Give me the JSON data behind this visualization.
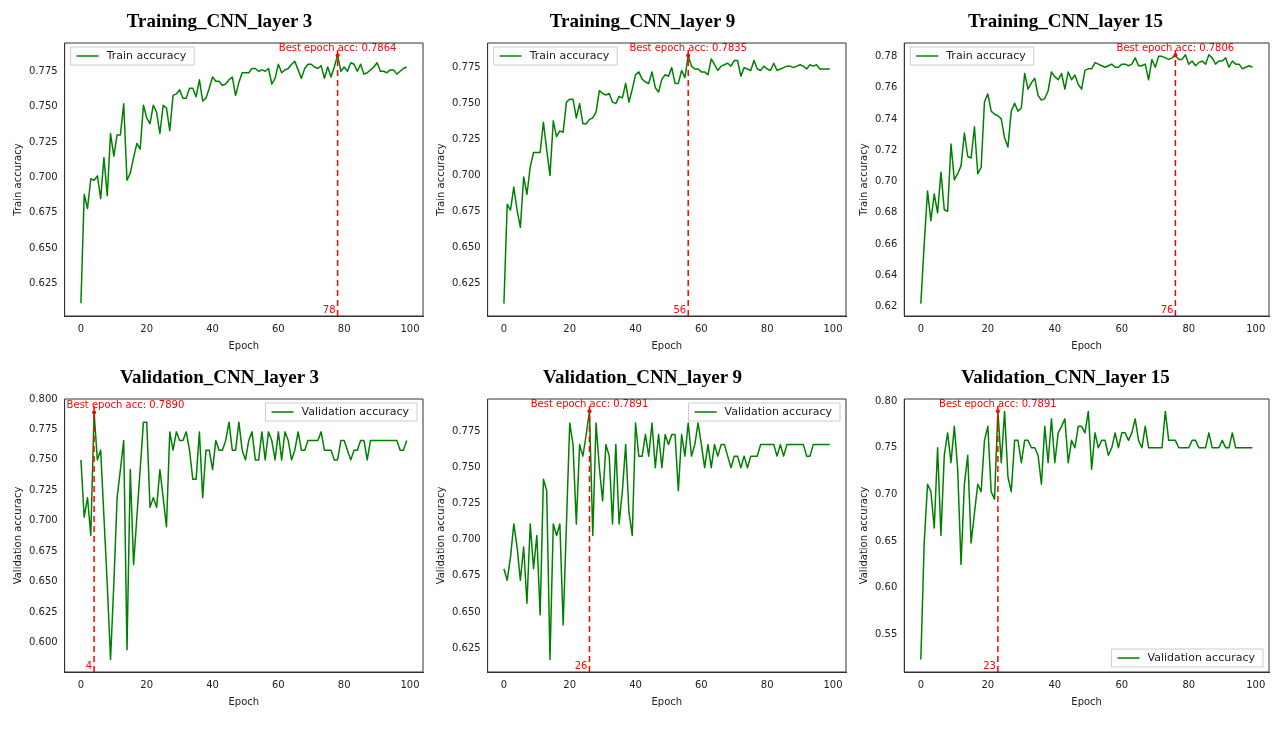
{
  "chart_data": [
    {
      "type": "line",
      "title": "Training_CNN_layer 3",
      "xlabel": "Epoch",
      "ylabel": "Train accuracy",
      "legend": "top left",
      "x": [
        0,
        1,
        2,
        3,
        4,
        5,
        6,
        7,
        8,
        9,
        10,
        11,
        12,
        13,
        14,
        15,
        16,
        17,
        18,
        19,
        20,
        21,
        22,
        23,
        24,
        25,
        26,
        27,
        28,
        29,
        30,
        31,
        32,
        33,
        34,
        35,
        36,
        37,
        38,
        39,
        40,
        41,
        42,
        43,
        44,
        45,
        46,
        47,
        48,
        49,
        50,
        51,
        52,
        53,
        54,
        55,
        56,
        57,
        58,
        59,
        60,
        61,
        62,
        63,
        64,
        65,
        66,
        67,
        68,
        69,
        70,
        71,
        72,
        73,
        74,
        75,
        76,
        77,
        78,
        79,
        80,
        81,
        82,
        83,
        84,
        85,
        86,
        87,
        88,
        89,
        90,
        91,
        92,
        93,
        94,
        95,
        96,
        97,
        98,
        99
      ],
      "series": [
        {
          "name": "Train accuracy",
          "color": "#008000",
          "values": [
            0.611,
            0.688,
            0.678,
            0.699,
            0.698,
            0.701,
            0.685,
            0.714,
            0.687,
            0.731,
            0.715,
            0.73,
            0.73,
            0.752,
            0.698,
            0.703,
            0.714,
            0.724,
            0.72,
            0.751,
            0.742,
            0.738,
            0.751,
            0.746,
            0.731,
            0.751,
            0.749,
            0.733,
            0.758,
            0.759,
            0.762,
            0.756,
            0.756,
            0.763,
            0.763,
            0.757,
            0.769,
            0.754,
            0.756,
            0.763,
            0.771,
            0.768,
            0.768,
            0.765,
            0.766,
            0.769,
            0.771,
            0.758,
            0.767,
            0.774,
            0.774,
            0.774,
            0.777,
            0.777,
            0.775,
            0.776,
            0.775,
            0.777,
            0.766,
            0.77,
            0.78,
            0.774,
            0.776,
            0.777,
            0.78,
            0.782,
            0.776,
            0.77,
            0.777,
            0.78,
            0.78,
            0.778,
            0.777,
            0.779,
            0.77,
            0.778,
            0.771,
            0.778,
            0.7864,
            0.775,
            0.778,
            0.775,
            0.781,
            0.78,
            0.775,
            0.78,
            0.773,
            0.774,
            0.776,
            0.778,
            0.781,
            0.775,
            0.775,
            0.774,
            0.776,
            0.776,
            0.773,
            0.775,
            0.777,
            0.778
          ]
        }
      ],
      "xlim": [
        -4.95,
        103.95
      ],
      "xticks": [
        0,
        20,
        40,
        60,
        80,
        100
      ],
      "ylim": [
        0.602,
        0.795
      ],
      "yticks": [
        {
          "value": 0.625,
          "label": "0.625"
        },
        {
          "value": 0.65,
          "label": "0.650"
        },
        {
          "value": 0.675,
          "label": "0.675"
        },
        {
          "value": 0.7,
          "label": "0.700"
        },
        {
          "value": 0.725,
          "label": "0.725"
        },
        {
          "value": 0.75,
          "label": "0.750"
        },
        {
          "value": 0.775,
          "label": "0.775"
        }
      ],
      "ref_lines": [
        {
          "axis": "x",
          "value": 78,
          "label": "78",
          "color": "#ff0000",
          "line_style": "dashed"
        }
      ],
      "annotations": [
        {
          "text": "Best epoch acc: 0.7864",
          "x": 78,
          "y": 0.7864
        }
      ]
    },
    {
      "type": "line",
      "title": "Training_CNN_layer 9",
      "xlabel": "Epoch",
      "ylabel": "Train accuracy",
      "legend": "top left",
      "x": [
        0,
        1,
        2,
        3,
        4,
        5,
        6,
        7,
        8,
        9,
        10,
        11,
        12,
        13,
        14,
        15,
        16,
        17,
        18,
        19,
        20,
        21,
        22,
        23,
        24,
        25,
        26,
        27,
        28,
        29,
        30,
        31,
        32,
        33,
        34,
        35,
        36,
        37,
        38,
        39,
        40,
        41,
        42,
        43,
        44,
        45,
        46,
        47,
        48,
        49,
        50,
        51,
        52,
        53,
        54,
        55,
        56,
        57,
        58,
        59,
        60,
        61,
        62,
        63,
        64,
        65,
        66,
        67,
        68,
        69,
        70,
        71,
        72,
        73,
        74,
        75,
        76,
        77,
        78,
        79,
        80,
        81,
        82,
        83,
        84,
        85,
        86,
        87,
        88,
        89,
        90,
        91,
        92,
        93,
        94,
        95,
        96,
        97,
        98,
        99
      ],
      "series": [
        {
          "name": "Train accuracy",
          "color": "#008000",
          "values": [
            0.611,
            0.68,
            0.676,
            0.692,
            0.676,
            0.664,
            0.699,
            0.687,
            0.706,
            0.716,
            0.716,
            0.716,
            0.737,
            0.718,
            0.7,
            0.738,
            0.727,
            0.731,
            0.73,
            0.751,
            0.753,
            0.753,
            0.74,
            0.75,
            0.736,
            0.736,
            0.739,
            0.74,
            0.744,
            0.759,
            0.757,
            0.756,
            0.757,
            0.751,
            0.75,
            0.755,
            0.754,
            0.764,
            0.751,
            0.76,
            0.77,
            0.772,
            0.767,
            0.765,
            0.764,
            0.772,
            0.761,
            0.758,
            0.767,
            0.77,
            0.769,
            0.775,
            0.764,
            0.764,
            0.773,
            0.768,
            0.7835,
            0.776,
            0.774,
            0.774,
            0.772,
            0.772,
            0.77,
            0.781,
            0.777,
            0.773,
            0.776,
            0.777,
            0.778,
            0.776,
            0.78,
            0.78,
            0.769,
            0.775,
            0.774,
            0.773,
            0.78,
            0.774,
            0.773,
            0.776,
            0.774,
            0.773,
            0.778,
            0.773,
            0.774,
            0.775,
            0.776,
            0.776,
            0.775,
            0.776,
            0.777,
            0.776,
            0.774,
            0.777,
            0.776,
            0.777,
            0.774,
            0.774,
            0.774,
            0.774
          ]
        }
      ],
      "xlim": [
        -4.95,
        103.95
      ],
      "xticks": [
        0,
        20,
        40,
        60,
        80,
        100
      ],
      "ylim": [
        0.6024,
        0.7921
      ],
      "yticks": [
        {
          "value": 0.625,
          "label": "0.625"
        },
        {
          "value": 0.65,
          "label": "0.650"
        },
        {
          "value": 0.675,
          "label": "0.675"
        },
        {
          "value": 0.7,
          "label": "0.700"
        },
        {
          "value": 0.725,
          "label": "0.725"
        },
        {
          "value": 0.75,
          "label": "0.750"
        },
        {
          "value": 0.775,
          "label": "0.775"
        }
      ],
      "ref_lines": [
        {
          "axis": "x",
          "value": 56,
          "label": "56",
          "color": "#ff0000",
          "line_style": "dashed"
        }
      ],
      "annotations": [
        {
          "text": "Best epoch acc: 0.7835",
          "x": 56,
          "y": 0.7835
        }
      ]
    },
    {
      "type": "line",
      "title": "Training_CNN_layer 15",
      "xlabel": "Epoch",
      "ylabel": "Train accuracy",
      "legend": "top left",
      "x": [
        0,
        1,
        2,
        3,
        4,
        5,
        6,
        7,
        8,
        9,
        10,
        11,
        12,
        13,
        14,
        15,
        16,
        17,
        18,
        19,
        20,
        21,
        22,
        23,
        24,
        25,
        26,
        27,
        28,
        29,
        30,
        31,
        32,
        33,
        34,
        35,
        36,
        37,
        38,
        39,
        40,
        41,
        42,
        43,
        44,
        45,
        46,
        47,
        48,
        49,
        50,
        51,
        52,
        53,
        54,
        55,
        56,
        57,
        58,
        59,
        60,
        61,
        62,
        63,
        64,
        65,
        66,
        67,
        68,
        69,
        70,
        71,
        72,
        73,
        74,
        75,
        76,
        77,
        78,
        79,
        80,
        81,
        82,
        83,
        84,
        85,
        86,
        87,
        88,
        89,
        90,
        91,
        92,
        93,
        94,
        95,
        96,
        97,
        98,
        99
      ],
      "series": [
        {
          "name": "Train accuracy",
          "color": "#008000",
          "values": [
            0.622,
            0.66,
            0.694,
            0.675,
            0.692,
            0.68,
            0.706,
            0.682,
            0.681,
            0.724,
            0.701,
            0.705,
            0.71,
            0.731,
            0.716,
            0.715,
            0.735,
            0.705,
            0.709,
            0.751,
            0.756,
            0.745,
            0.743,
            0.742,
            0.74,
            0.728,
            0.722,
            0.745,
            0.75,
            0.745,
            0.747,
            0.769,
            0.759,
            0.763,
            0.766,
            0.755,
            0.752,
            0.753,
            0.758,
            0.77,
            0.767,
            0.765,
            0.769,
            0.759,
            0.77,
            0.765,
            0.768,
            0.762,
            0.759,
            0.771,
            0.772,
            0.772,
            0.776,
            0.775,
            0.774,
            0.773,
            0.774,
            0.775,
            0.773,
            0.773,
            0.775,
            0.775,
            0.774,
            0.775,
            0.779,
            0.774,
            0.774,
            0.775,
            0.765,
            0.778,
            0.773,
            0.78,
            0.78,
            0.779,
            0.778,
            0.779,
            0.7806,
            0.778,
            0.778,
            0.781,
            0.775,
            0.777,
            0.774,
            0.776,
            0.777,
            0.775,
            0.781,
            0.779,
            0.775,
            0.777,
            0.777,
            0.779,
            0.773,
            0.777,
            0.775,
            0.775,
            0.772,
            0.773,
            0.774,
            0.773
          ]
        }
      ],
      "xlim": [
        -4.95,
        103.95
      ],
      "xticks": [
        0,
        20,
        40,
        60,
        80,
        100
      ],
      "ylim": [
        0.6141,
        0.7885
      ],
      "yticks": [
        {
          "value": 0.62,
          "label": "0.62"
        },
        {
          "value": 0.64,
          "label": "0.64"
        },
        {
          "value": 0.66,
          "label": "0.66"
        },
        {
          "value": 0.68,
          "label": "0.68"
        },
        {
          "value": 0.7,
          "label": "0.70"
        },
        {
          "value": 0.72,
          "label": "0.72"
        },
        {
          "value": 0.74,
          "label": "0.74"
        },
        {
          "value": 0.76,
          "label": "0.76"
        },
        {
          "value": 0.78,
          "label": "0.78"
        }
      ],
      "ref_lines": [
        {
          "axis": "x",
          "value": 76,
          "label": "76",
          "color": "#ff0000",
          "line_style": "dashed"
        }
      ],
      "annotations": [
        {
          "text": "Best epoch acc: 0.7806",
          "x": 76,
          "y": 0.7806
        }
      ]
    },
    {
      "type": "line",
      "title": "Validation_CNN_layer 3",
      "xlabel": "Epoch",
      "ylabel": "Validation accuracy",
      "legend": "top right",
      "x": [
        0,
        1,
        2,
        3,
        4,
        5,
        6,
        7,
        8,
        9,
        10,
        11,
        12,
        13,
        14,
        15,
        16,
        17,
        18,
        19,
        20,
        21,
        22,
        23,
        24,
        25,
        26,
        27,
        28,
        29,
        30,
        31,
        32,
        33,
        34,
        35,
        36,
        37,
        38,
        39,
        40,
        41,
        42,
        43,
        44,
        45,
        46,
        47,
        48,
        49,
        50,
        51,
        52,
        53,
        54,
        55,
        56,
        57,
        58,
        59,
        60,
        61,
        62,
        63,
        64,
        65,
        66,
        67,
        68,
        69,
        70,
        71,
        72,
        73,
        74,
        75,
        76,
        77,
        78,
        79,
        80,
        81,
        82,
        83,
        84,
        85,
        86,
        87,
        88,
        89,
        90,
        91,
        92,
        93,
        94,
        95,
        96,
        97,
        98,
        99
      ],
      "series": [
        {
          "name": "Validation accuracy",
          "color": "#008000",
          "values": [
            0.75,
            0.703,
            0.719,
            0.688,
            0.789,
            0.75,
            0.758,
            0.703,
            0.648,
            0.586,
            0.648,
            0.719,
            0.742,
            0.766,
            0.594,
            0.742,
            0.664,
            0.703,
            0.742,
            0.781,
            0.781,
            0.711,
            0.719,
            0.711,
            0.742,
            0.719,
            0.695,
            0.773,
            0.758,
            0.773,
            0.766,
            0.766,
            0.773,
            0.758,
            0.734,
            0.734,
            0.773,
            0.719,
            0.758,
            0.758,
            0.742,
            0.766,
            0.758,
            0.758,
            0.766,
            0.781,
            0.758,
            0.758,
            0.781,
            0.758,
            0.75,
            0.766,
            0.773,
            0.75,
            0.75,
            0.773,
            0.75,
            0.773,
            0.766,
            0.75,
            0.773,
            0.75,
            0.773,
            0.766,
            0.75,
            0.758,
            0.773,
            0.758,
            0.758,
            0.766,
            0.766,
            0.766,
            0.766,
            0.773,
            0.758,
            0.758,
            0.758,
            0.75,
            0.75,
            0.766,
            0.766,
            0.758,
            0.75,
            0.758,
            0.758,
            0.766,
            0.766,
            0.75,
            0.766,
            0.766,
            0.766,
            0.766,
            0.766,
            0.766,
            0.766,
            0.766,
            0.766,
            0.758,
            0.758,
            0.766
          ]
        }
      ],
      "xlim": [
        -4.95,
        103.95
      ],
      "xticks": [
        0,
        20,
        40,
        60,
        80,
        100
      ],
      "ylim": [
        0.5758,
        0.8
      ],
      "yticks": [
        {
          "value": 0.6,
          "label": "0.600"
        },
        {
          "value": 0.625,
          "label": "0.625"
        },
        {
          "value": 0.65,
          "label": "0.650"
        },
        {
          "value": 0.675,
          "label": "0.675"
        },
        {
          "value": 0.7,
          "label": "0.700"
        },
        {
          "value": 0.725,
          "label": "0.725"
        },
        {
          "value": 0.75,
          "label": "0.750"
        },
        {
          "value": 0.775,
          "label": "0.775"
        },
        {
          "value": 0.8,
          "label": "0.800"
        }
      ],
      "ref_lines": [
        {
          "axis": "x",
          "value": 4,
          "label": "4",
          "color": "#ff0000",
          "line_style": "dashed"
        }
      ],
      "annotations": [
        {
          "text": "Best epoch acc: 0.7890",
          "x": 4,
          "y": 0.789
        }
      ]
    },
    {
      "type": "line",
      "title": "Validation_CNN_layer 9",
      "xlabel": "Epoch",
      "ylabel": "Validation accuracy",
      "legend": "top right",
      "x": [
        0,
        1,
        2,
        3,
        4,
        5,
        6,
        7,
        8,
        9,
        10,
        11,
        12,
        13,
        14,
        15,
        16,
        17,
        18,
        19,
        20,
        21,
        22,
        23,
        24,
        25,
        26,
        27,
        28,
        29,
        30,
        31,
        32,
        33,
        34,
        35,
        36,
        37,
        38,
        39,
        40,
        41,
        42,
        43,
        44,
        45,
        46,
        47,
        48,
        49,
        50,
        51,
        52,
        53,
        54,
        55,
        56,
        57,
        58,
        59,
        60,
        61,
        62,
        63,
        64,
        65,
        66,
        67,
        68,
        69,
        70,
        71,
        72,
        73,
        74,
        75,
        76,
        77,
        78,
        79,
        80,
        81,
        82,
        83,
        84,
        85,
        86,
        87,
        88,
        89,
        90,
        91,
        92,
        93,
        94,
        95,
        96,
        97,
        98,
        99
      ],
      "series": [
        {
          "name": "Validation accuracy",
          "color": "#008000",
          "values": [
            0.68,
            0.672,
            0.688,
            0.711,
            0.695,
            0.672,
            0.695,
            0.656,
            0.711,
            0.68,
            0.703,
            0.648,
            0.742,
            0.734,
            0.617,
            0.711,
            0.703,
            0.711,
            0.641,
            0.711,
            0.781,
            0.766,
            0.711,
            0.766,
            0.758,
            0.773,
            0.789,
            0.703,
            0.781,
            0.75,
            0.727,
            0.766,
            0.758,
            0.711,
            0.766,
            0.711,
            0.734,
            0.766,
            0.719,
            0.703,
            0.781,
            0.758,
            0.758,
            0.773,
            0.758,
            0.781,
            0.75,
            0.773,
            0.75,
            0.773,
            0.766,
            0.773,
            0.773,
            0.734,
            0.773,
            0.758,
            0.781,
            0.758,
            0.766,
            0.781,
            0.766,
            0.75,
            0.766,
            0.75,
            0.766,
            0.758,
            0.766,
            0.766,
            0.758,
            0.75,
            0.758,
            0.758,
            0.75,
            0.758,
            0.75,
            0.758,
            0.758,
            0.758,
            0.766,
            0.766,
            0.766,
            0.766,
            0.766,
            0.758,
            0.766,
            0.758,
            0.766,
            0.766,
            0.766,
            0.766,
            0.766,
            0.766,
            0.758,
            0.758,
            0.766,
            0.766,
            0.766,
            0.766,
            0.766,
            0.766
          ]
        }
      ],
      "xlim": [
        -4.95,
        103.95
      ],
      "xticks": [
        0,
        20,
        40,
        60,
        80,
        100
      ],
      "ylim": [
        0.6084,
        0.7976
      ],
      "yticks": [
        {
          "value": 0.625,
          "label": "0.625"
        },
        {
          "value": 0.65,
          "label": "0.650"
        },
        {
          "value": 0.675,
          "label": "0.675"
        },
        {
          "value": 0.7,
          "label": "0.700"
        },
        {
          "value": 0.725,
          "label": "0.725"
        },
        {
          "value": 0.75,
          "label": "0.750"
        },
        {
          "value": 0.775,
          "label": "0.775"
        }
      ],
      "ref_lines": [
        {
          "axis": "x",
          "value": 26,
          "label": "26",
          "color": "#ff0000",
          "line_style": "dashed"
        }
      ],
      "annotations": [
        {
          "text": "Best epoch acc: 0.7891",
          "x": 26,
          "y": 0.7891
        }
      ]
    },
    {
      "type": "line",
      "title": "Validation_CNN_layer 15",
      "xlabel": "Epoch",
      "ylabel": "Validation accuracy",
      "legend": "bottom right",
      "x": [
        0,
        1,
        2,
        3,
        4,
        5,
        6,
        7,
        8,
        9,
        10,
        11,
        12,
        13,
        14,
        15,
        16,
        17,
        18,
        19,
        20,
        21,
        22,
        23,
        24,
        25,
        26,
        27,
        28,
        29,
        30,
        31,
        32,
        33,
        34,
        35,
        36,
        37,
        38,
        39,
        40,
        41,
        42,
        43,
        44,
        45,
        46,
        47,
        48,
        49,
        50,
        51,
        52,
        53,
        54,
        55,
        56,
        57,
        58,
        59,
        60,
        61,
        62,
        63,
        64,
        65,
        66,
        67,
        68,
        69,
        70,
        71,
        72,
        73,
        74,
        75,
        76,
        77,
        78,
        79,
        80,
        81,
        82,
        83,
        84,
        85,
        86,
        87,
        88,
        89,
        90,
        91,
        92,
        93,
        94,
        95,
        96,
        97,
        98,
        99
      ],
      "series": [
        {
          "name": "Validation accuracy",
          "color": "#008000",
          "values": [
            0.523,
            0.648,
            0.711,
            0.703,
            0.664,
            0.75,
            0.656,
            0.742,
            0.766,
            0.734,
            0.773,
            0.727,
            0.625,
            0.711,
            0.742,
            0.648,
            0.68,
            0.711,
            0.703,
            0.758,
            0.773,
            0.703,
            0.695,
            0.789,
            0.734,
            0.789,
            0.719,
            0.703,
            0.758,
            0.758,
            0.734,
            0.758,
            0.758,
            0.75,
            0.75,
            0.742,
            0.711,
            0.773,
            0.734,
            0.781,
            0.734,
            0.766,
            0.773,
            0.781,
            0.734,
            0.758,
            0.75,
            0.773,
            0.773,
            0.766,
            0.789,
            0.727,
            0.766,
            0.75,
            0.758,
            0.758,
            0.742,
            0.75,
            0.766,
            0.75,
            0.766,
            0.766,
            0.758,
            0.766,
            0.781,
            0.758,
            0.75,
            0.773,
            0.75,
            0.75,
            0.75,
            0.75,
            0.75,
            0.789,
            0.758,
            0.758,
            0.758,
            0.75,
            0.75,
            0.75,
            0.75,
            0.758,
            0.758,
            0.75,
            0.75,
            0.75,
            0.766,
            0.75,
            0.75,
            0.75,
            0.758,
            0.75,
            0.75,
            0.766,
            0.75,
            0.75,
            0.75,
            0.75,
            0.75,
            0.75
          ]
        }
      ],
      "xlim": [
        -4.95,
        103.95
      ],
      "xticks": [
        0,
        20,
        40,
        60,
        80,
        100
      ],
      "ylim": [
        0.5097,
        0.8023
      ],
      "yticks": [
        {
          "value": 0.55,
          "label": "0.55"
        },
        {
          "value": 0.6,
          "label": "0.60"
        },
        {
          "value": 0.65,
          "label": "0.65"
        },
        {
          "value": 0.7,
          "label": "0.70"
        },
        {
          "value": 0.75,
          "label": "0.75"
        },
        {
          "value": 0.8,
          "label": "0.80"
        }
      ],
      "ref_lines": [
        {
          "axis": "x",
          "value": 23,
          "label": "23",
          "color": "#ff0000",
          "line_style": "dashed"
        }
      ],
      "annotations": [
        {
          "text": "Best epoch acc: 0.7891",
          "x": 23,
          "y": 0.7891
        }
      ]
    }
  ]
}
